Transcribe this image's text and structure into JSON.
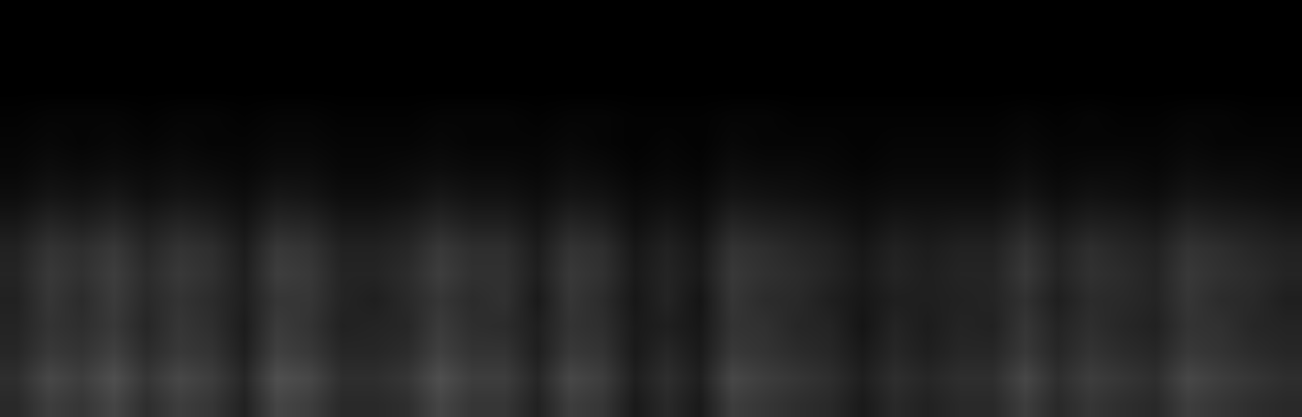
{
  "chart_data": {
    "type": "heatmap",
    "tick_labels": false,
    "grid": false,
    "zlim": [
      0,
      100
    ],
    "cells": [
      [
        0,
        0,
        0,
        0,
        0,
        0,
        0,
        0,
        0,
        0,
        0,
        0,
        0,
        0,
        0,
        0,
        0,
        0,
        0,
        0,
        0,
        0,
        0,
        0,
        0,
        0,
        0,
        0,
        0,
        0,
        0,
        0,
        0,
        0,
        0,
        0,
        0,
        0,
        0,
        0
      ],
      [
        0,
        0,
        0,
        0,
        0,
        0,
        0,
        0,
        0,
        0,
        0,
        0,
        0,
        0,
        0,
        0,
        0,
        0,
        0,
        0,
        0,
        0,
        0,
        0,
        0,
        0,
        0,
        0,
        0,
        0,
        0,
        0,
        0,
        0,
        0,
        0,
        0,
        0,
        0,
        0
      ],
      [
        0,
        0,
        0,
        0,
        0,
        0,
        0,
        0,
        0,
        0,
        0,
        0,
        0,
        0,
        0,
        0,
        0,
        0,
        0,
        0,
        0,
        0,
        0,
        0,
        0,
        0,
        0,
        0,
        0,
        0,
        0,
        0,
        0,
        0,
        0,
        0,
        0,
        0,
        0,
        0
      ],
      [
        0,
        0,
        0,
        0,
        0,
        0,
        0,
        0,
        0,
        0,
        0,
        0,
        0,
        0,
        0,
        0,
        0,
        0,
        0,
        0,
        0,
        0,
        0,
        0,
        0,
        0,
        0,
        0,
        0,
        0,
        0,
        0,
        0,
        0,
        0,
        0,
        0,
        0,
        0,
        0
      ],
      [
        1,
        2,
        2,
        2,
        1,
        2,
        2,
        1,
        2,
        2,
        1,
        1,
        1,
        2,
        2,
        2,
        1,
        2,
        2,
        1,
        1,
        1,
        2,
        2,
        1,
        1,
        1,
        1,
        1,
        1,
        1,
        2,
        1,
        2,
        1,
        1,
        2,
        2,
        1,
        1
      ],
      [
        2,
        3,
        2,
        3,
        2,
        3,
        2,
        2,
        3,
        3,
        2,
        2,
        2,
        3,
        2,
        2,
        2,
        3,
        2,
        1,
        2,
        1,
        3,
        2,
        2,
        2,
        1,
        2,
        2,
        2,
        2,
        3,
        2,
        2,
        2,
        2,
        3,
        2,
        2,
        2
      ],
      [
        3,
        5,
        4,
        5,
        4,
        5,
        4,
        3,
        5,
        5,
        3,
        3,
        4,
        5,
        4,
        4,
        3,
        5,
        4,
        2,
        3,
        2,
        5,
        4,
        4,
        3,
        2,
        3,
        3,
        3,
        3,
        5,
        3,
        4,
        4,
        3,
        5,
        4,
        4,
        3
      ],
      [
        5,
        8,
        7,
        9,
        6,
        8,
        7,
        5,
        9,
        8,
        5,
        5,
        6,
        9,
        7,
        7,
        5,
        8,
        7,
        4,
        5,
        4,
        8,
        7,
        6,
        5,
        4,
        5,
        5,
        5,
        5,
        8,
        5,
        7,
        6,
        5,
        8,
        7,
        6,
        5
      ],
      [
        9,
        14,
        12,
        15,
        11,
        14,
        12,
        8,
        15,
        14,
        9,
        9,
        11,
        15,
        12,
        12,
        8,
        14,
        12,
        6,
        9,
        6,
        14,
        12,
        11,
        9,
        6,
        9,
        8,
        9,
        9,
        14,
        9,
        12,
        11,
        9,
        14,
        12,
        11,
        9
      ],
      [
        13,
        20,
        18,
        22,
        15,
        20,
        18,
        11,
        22,
        20,
        13,
        13,
        15,
        22,
        18,
        18,
        11,
        20,
        18,
        9,
        13,
        9,
        20,
        18,
        15,
        13,
        9,
        13,
        11,
        13,
        13,
        20,
        13,
        18,
        15,
        13,
        20,
        18,
        15,
        13
      ],
      [
        14,
        22,
        19,
        24,
        17,
        22,
        19,
        12,
        24,
        22,
        14,
        14,
        17,
        24,
        19,
        19,
        12,
        22,
        19,
        10,
        14,
        10,
        22,
        19,
        17,
        14,
        10,
        14,
        12,
        14,
        14,
        22,
        14,
        19,
        17,
        14,
        22,
        19,
        17,
        14
      ],
      [
        13,
        21,
        17,
        23,
        16,
        20,
        17,
        12,
        21,
        21,
        14,
        12,
        16,
        21,
        17,
        19,
        10,
        21,
        17,
        9,
        14,
        8,
        21,
        17,
        16,
        12,
        9,
        12,
        12,
        13,
        14,
        19,
        12,
        17,
        16,
        14,
        21,
        17,
        16,
        12
      ],
      [
        14,
        20,
        18,
        22,
        15,
        21,
        18,
        11,
        23,
        20,
        13,
        14,
        15,
        23,
        18,
        17,
        12,
        20,
        18,
        10,
        12,
        9,
        20,
        19,
        15,
        14,
        8,
        14,
        11,
        14,
        13,
        21,
        14,
        18,
        15,
        13,
        20,
        19,
        15,
        14
      ],
      [
        15,
        22,
        20,
        25,
        17,
        22,
        20,
        12,
        25,
        22,
        15,
        15,
        17,
        25,
        20,
        20,
        12,
        22,
        20,
        10,
        15,
        10,
        22,
        20,
        17,
        15,
        10,
        15,
        12,
        15,
        15,
        22,
        15,
        20,
        17,
        15,
        22,
        20,
        17,
        15
      ],
      [
        18,
        28,
        24,
        31,
        21,
        28,
        24,
        15,
        31,
        28,
        18,
        18,
        21,
        31,
        24,
        24,
        15,
        28,
        24,
        12,
        18,
        12,
        28,
        24,
        21,
        18,
        12,
        18,
        15,
        18,
        18,
        28,
        18,
        24,
        21,
        18,
        28,
        24,
        21,
        18
      ],
      [
        16,
        24,
        21,
        27,
        18,
        24,
        21,
        13,
        27,
        24,
        16,
        16,
        18,
        27,
        21,
        21,
        13,
        24,
        21,
        10,
        16,
        10,
        24,
        21,
        18,
        16,
        10,
        16,
        13,
        16,
        16,
        24,
        16,
        21,
        18,
        16,
        24,
        21,
        18,
        16
      ]
    ]
  }
}
